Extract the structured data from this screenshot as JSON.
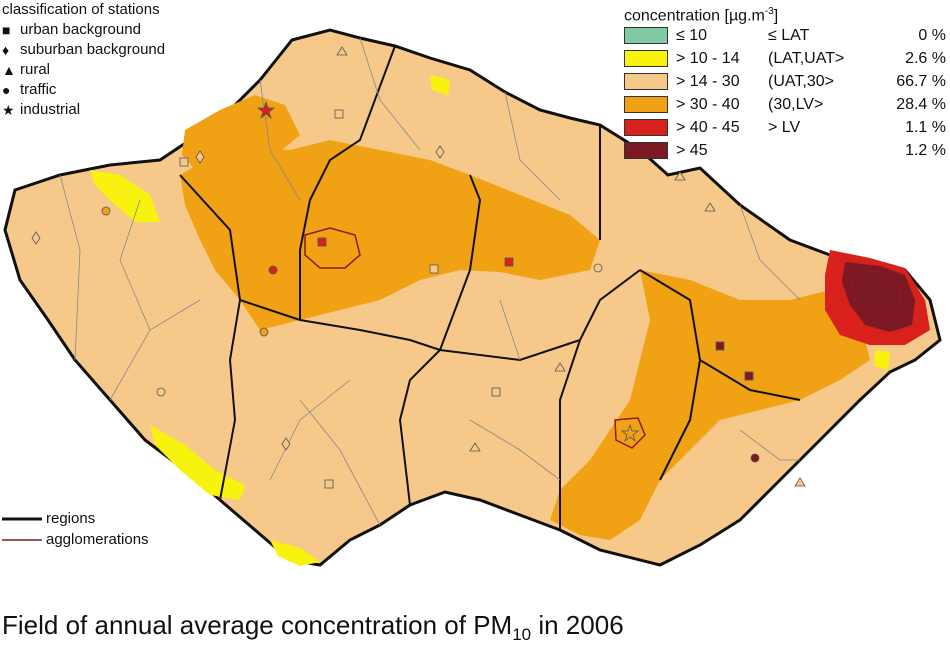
{
  "station_legend": {
    "heading": "classification of stations",
    "items": [
      {
        "symbol": "■",
        "label": "urban background",
        "icon": "square-icon"
      },
      {
        "symbol": "♦",
        "label": "suburban background",
        "icon": "diamond-icon"
      },
      {
        "symbol": "▲",
        "label": "rural",
        "icon": "triangle-icon"
      },
      {
        "symbol": "●",
        "label": "traffic",
        "icon": "circle-icon"
      },
      {
        "symbol": "★",
        "label": "industrial",
        "icon": "star-icon"
      }
    ]
  },
  "concentration_legend": {
    "heading": "concentration [µg.m",
    "heading_exponent": "-3",
    "heading_close": "]",
    "classes": [
      {
        "range": "≤ 10",
        "label": "≤ LAT",
        "percent": "0 %",
        "color": "#7fc9a3"
      },
      {
        "range": "> 10 - 14",
        "label": "(LAT,UAT>",
        "percent": "2.6 %",
        "color": "#f7f20e"
      },
      {
        "range": "> 14 - 30",
        "label": "(UAT,30>",
        "percent": "66.7 %",
        "color": "#f6c98a"
      },
      {
        "range": "> 30 - 40",
        "label": "(30,LV>",
        "percent": "28.4 %",
        "color": "#f0a114"
      },
      {
        "range": "> 40 - 45",
        "label": "> LV",
        "percent": "1.1 %",
        "color": "#d8201c"
      },
      {
        "range": "> 45",
        "label": "",
        "percent": "1.2 %",
        "color": "#7b1a24"
      }
    ]
  },
  "line_legend": [
    {
      "label": "regions",
      "color": "#111111"
    },
    {
      "label": "agglomerations",
      "color": "#8b1a1a"
    }
  ],
  "title": {
    "text": "Field of annual average concentration of PM",
    "subscript": "10",
    "suffix": " in 2006"
  }
}
